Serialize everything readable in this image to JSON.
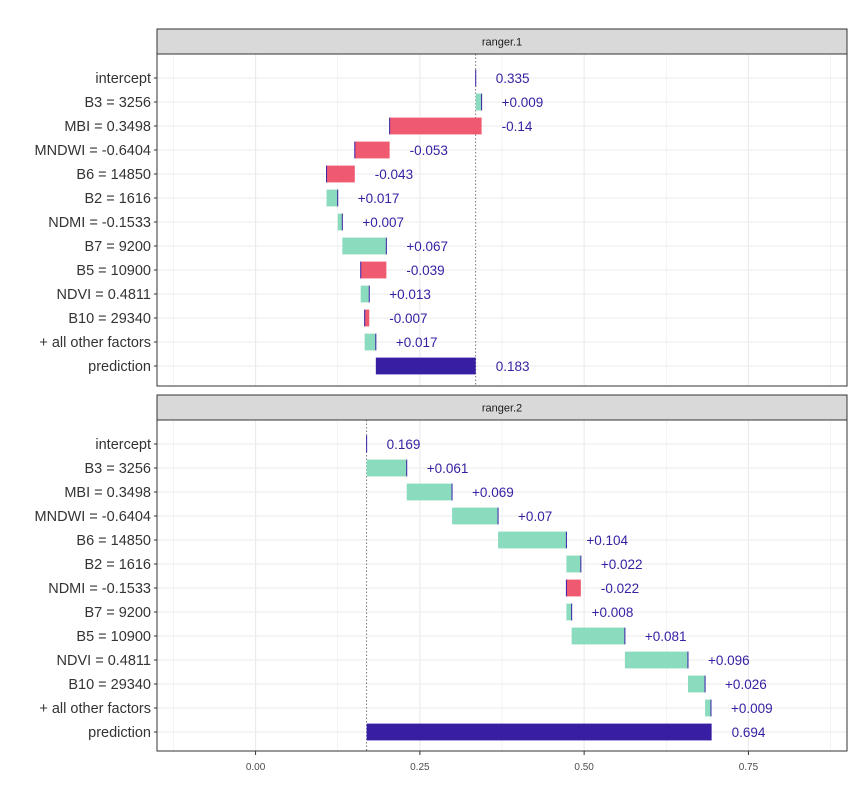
{
  "chart_data": {
    "type": "bar",
    "subtype": "waterfall / break-down",
    "xlim": [
      -0.15,
      0.9
    ],
    "x_ticks": [
      0.0,
      0.25,
      0.5,
      0.75
    ],
    "x_tick_labels": [
      "0.00",
      "0.25",
      "0.50",
      "0.75"
    ],
    "grid": true,
    "colors": {
      "positive": "#8bdcbe",
      "negative": "#f05a71",
      "prediction": "#371ea3",
      "label": "#371ea3",
      "strip_fill": "#d9d9d9",
      "grid": "#ebebeb"
    },
    "panels": [
      {
        "title": "ranger.1",
        "intercept": 0.335,
        "rows": [
          {
            "label": "intercept",
            "kind": "intercept",
            "value": 0.335,
            "text": "0.335"
          },
          {
            "label": "B3 = 3256",
            "kind": "contribution",
            "value": 0.009,
            "text": "+0.009"
          },
          {
            "label": "MBI = 0.3498",
            "kind": "contribution",
            "value": -0.14,
            "text": "-0.14"
          },
          {
            "label": "MNDWI = -0.6404",
            "kind": "contribution",
            "value": -0.053,
            "text": "-0.053"
          },
          {
            "label": "B6 = 14850",
            "kind": "contribution",
            "value": -0.043,
            "text": "-0.043"
          },
          {
            "label": "B2 = 1616",
            "kind": "contribution",
            "value": 0.017,
            "text": "+0.017"
          },
          {
            "label": "NDMI = -0.1533",
            "kind": "contribution",
            "value": 0.007,
            "text": "+0.007"
          },
          {
            "label": "B7 = 9200",
            "kind": "contribution",
            "value": 0.067,
            "text": "+0.067"
          },
          {
            "label": "B5 = 10900",
            "kind": "contribution",
            "value": -0.039,
            "text": "-0.039"
          },
          {
            "label": "NDVI = 0.4811",
            "kind": "contribution",
            "value": 0.013,
            "text": "+0.013"
          },
          {
            "label": "B10 = 29340",
            "kind": "contribution",
            "value": -0.007,
            "text": "-0.007"
          },
          {
            "label": "+ all other factors",
            "kind": "contribution",
            "value": 0.017,
            "text": "+0.017"
          },
          {
            "label": "prediction",
            "kind": "prediction",
            "value": 0.183,
            "text": "0.183"
          }
        ]
      },
      {
        "title": "ranger.2",
        "intercept": 0.169,
        "rows": [
          {
            "label": "intercept",
            "kind": "intercept",
            "value": 0.169,
            "text": "0.169"
          },
          {
            "label": "B3 = 3256",
            "kind": "contribution",
            "value": 0.061,
            "text": "+0.061"
          },
          {
            "label": "MBI = 0.3498",
            "kind": "contribution",
            "value": 0.069,
            "text": "+0.069"
          },
          {
            "label": "MNDWI = -0.6404",
            "kind": "contribution",
            "value": 0.07,
            "text": "+0.07"
          },
          {
            "label": "B6 = 14850",
            "kind": "contribution",
            "value": 0.104,
            "text": "+0.104"
          },
          {
            "label": "B2 = 1616",
            "kind": "contribution",
            "value": 0.022,
            "text": "+0.022"
          },
          {
            "label": "NDMI = -0.1533",
            "kind": "contribution",
            "value": -0.022,
            "text": "-0.022"
          },
          {
            "label": "B7 = 9200",
            "kind": "contribution",
            "value": 0.008,
            "text": "+0.008"
          },
          {
            "label": "B5 = 10900",
            "kind": "contribution",
            "value": 0.081,
            "text": "+0.081"
          },
          {
            "label": "NDVI = 0.4811",
            "kind": "contribution",
            "value": 0.096,
            "text": "+0.096"
          },
          {
            "label": "B10 = 29340",
            "kind": "contribution",
            "value": 0.026,
            "text": "+0.026"
          },
          {
            "label": "+ all other factors",
            "kind": "contribution",
            "value": 0.009,
            "text": "+0.009"
          },
          {
            "label": "prediction",
            "kind": "prediction",
            "value": 0.694,
            "text": "0.694"
          }
        ]
      }
    ]
  }
}
